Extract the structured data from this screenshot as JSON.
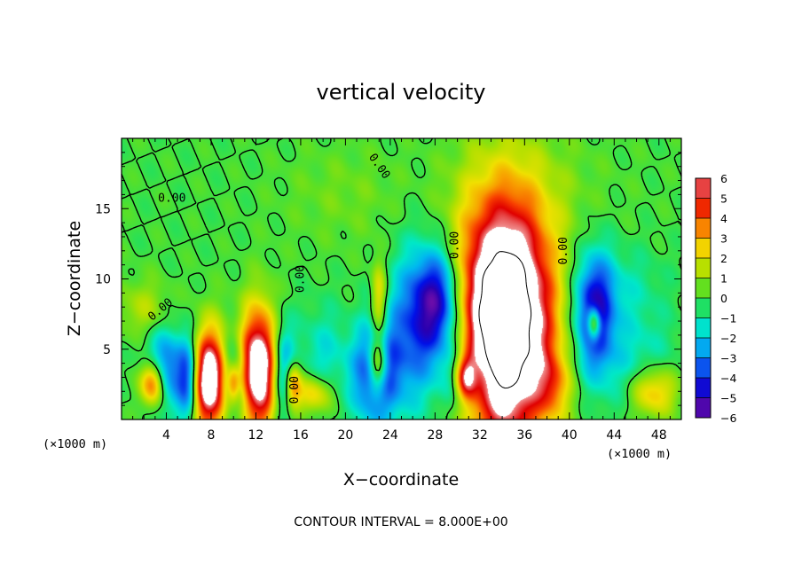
{
  "chart_data": {
    "type": "heatmap",
    "title": "vertical velocity",
    "xlabel": "X−coordinate",
    "ylabel": "Z−coordinate",
    "x_unit_label": "(×1000 m)",
    "z_unit_label": "(×1000 m)",
    "footnote": "CONTOUR INTERVAL = 8.000E+00",
    "xlim": [
      0,
      50
    ],
    "ylim": [
      0,
      20
    ],
    "x_ticks": [
      4,
      8,
      12,
      16,
      20,
      24,
      28,
      32,
      36,
      40,
      44,
      48
    ],
    "y_ticks": [
      5,
      10,
      15
    ],
    "colorbar": {
      "min": -6,
      "max": 6,
      "ticks": [
        6,
        5,
        4,
        3,
        2,
        1,
        0,
        -1,
        -2,
        -3,
        -4,
        -5,
        -6
      ],
      "tick_labels": [
        "6",
        "5",
        "4",
        "3",
        "2",
        "1",
        "0",
        "−1",
        "−2",
        "−3",
        "−4",
        "−5",
        "−6"
      ],
      "colors": [
        "#7a10a8",
        "#2a00b0",
        "#0010e8",
        "#1070f0",
        "#00b8f0",
        "#00e8c8",
        "#20e060",
        "#60e020",
        "#b0e000",
        "#f0e000",
        "#f8a000",
        "#f84000",
        "#e00000",
        "#f09090"
      ]
    },
    "contour_labels": [
      "0.00",
      "0.00",
      "0.00",
      "0.00",
      "0.00",
      "0.00",
      "0.00"
    ],
    "features": [
      {
        "x": 2.8,
        "z": 2.6,
        "sx": 0.8,
        "sz": 1.2,
        "value": 6
      },
      {
        "x": 3.8,
        "z": 3.5,
        "sx": 1.3,
        "sz": 2.0,
        "value": -4
      },
      {
        "x": 2.0,
        "z": 7.8,
        "sx": 1.6,
        "sz": 1.5,
        "value": 1.5
      },
      {
        "x": 6.0,
        "z": 2.8,
        "sx": 0.7,
        "sz": 2.2,
        "value": -4.5
      },
      {
        "x": 7.8,
        "z": 2.8,
        "sx": 1.2,
        "sz": 2.5,
        "value": 8
      },
      {
        "x": 10.0,
        "z": 2.8,
        "sx": 0.7,
        "sz": 2.2,
        "value": -4
      },
      {
        "x": 10.0,
        "z": 2.5,
        "sx": 0.4,
        "sz": 1.0,
        "value": 4
      },
      {
        "x": 12.3,
        "z": 3.6,
        "sx": 1.3,
        "sz": 3.0,
        "value": 8
      },
      {
        "x": 14.4,
        "z": 3.5,
        "sx": 0.8,
        "sz": 2.5,
        "value": -4
      },
      {
        "x": 15.3,
        "z": 2.5,
        "sx": 0.5,
        "sz": 1.2,
        "value": 4
      },
      {
        "x": 17.2,
        "z": 1.8,
        "sx": 1.2,
        "sz": 1.0,
        "value": 3
      },
      {
        "x": 18.0,
        "z": 4.5,
        "sx": 1.5,
        "sz": 2.5,
        "value": -1.5
      },
      {
        "x": 22.7,
        "z": 3.2,
        "sx": 1.5,
        "sz": 2.5,
        "value": -4.5
      },
      {
        "x": 22.9,
        "z": 3.8,
        "sx": 0.6,
        "sz": 1.4,
        "value": 5
      },
      {
        "x": 23.0,
        "z": 8.5,
        "sx": 0.5,
        "sz": 2.0,
        "value": 3
      },
      {
        "x": 26.5,
        "z": 6.5,
        "sx": 2.0,
        "sz": 4.0,
        "value": -3.5
      },
      {
        "x": 28.5,
        "z": 8.5,
        "sx": 1.5,
        "sz": 2.5,
        "value": -4.5
      },
      {
        "x": 30.5,
        "z": 3.0,
        "sx": 1.3,
        "sz": 2.0,
        "value": -4
      },
      {
        "x": 30.7,
        "z": 3.0,
        "sx": 0.7,
        "sz": 1.2,
        "value": 6
      },
      {
        "x": 34.2,
        "z": 7.0,
        "sx": 3.0,
        "sz": 6.0,
        "value": 11
      },
      {
        "x": 38.5,
        "z": 2.5,
        "sx": 1.0,
        "sz": 1.5,
        "value": 2
      },
      {
        "x": 42.2,
        "z": 7.5,
        "sx": 1.3,
        "sz": 3.0,
        "value": -5
      },
      {
        "x": 42.2,
        "z": 6.8,
        "sx": 0.4,
        "sz": 0.8,
        "value": 5
      },
      {
        "x": 46.0,
        "z": 4.0,
        "sx": 2.5,
        "sz": 2.5,
        "value": -1.5
      },
      {
        "x": 47.5,
        "z": 2.0,
        "sx": 1.5,
        "sz": 1.3,
        "value": 3.5
      },
      {
        "x": 45.0,
        "z": 9.5,
        "sx": 2.5,
        "sz": 2.0,
        "value": -1
      },
      {
        "x": 20.0,
        "z": 16.0,
        "sx": 4.0,
        "sz": 2.5,
        "value": 0.6
      },
      {
        "x": 37.0,
        "z": 16.5,
        "sx": 5.0,
        "sz": 3.0,
        "value": 0.5
      }
    ]
  }
}
